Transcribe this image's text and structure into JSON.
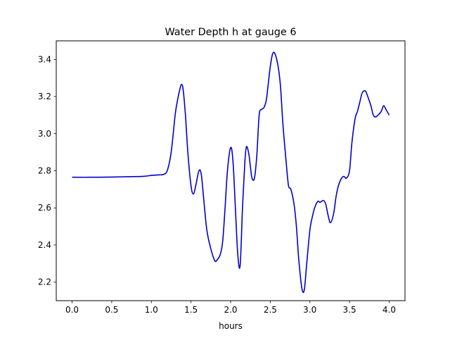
{
  "chart_data": {
    "type": "line",
    "title": "Water Depth h at gauge 6",
    "xlabel": "hours",
    "ylabel": "",
    "xlim": [
      -0.2,
      4.2
    ],
    "ylim": [
      2.1,
      3.5
    ],
    "xticks": [
      0.0,
      0.5,
      1.0,
      1.5,
      2.0,
      2.5,
      3.0,
      3.5,
      4.0
    ],
    "xtick_labels": [
      "0.0",
      "0.5",
      "1.0",
      "1.5",
      "2.0",
      "2.5",
      "3.0",
      "3.5",
      "4.0"
    ],
    "yticks": [
      2.2,
      2.4,
      2.6,
      2.8,
      3.0,
      3.2,
      3.4
    ],
    "ytick_labels": [
      "2.2",
      "2.4",
      "2.6",
      "2.8",
      "3.0",
      "3.2",
      "3.4"
    ],
    "grid": false,
    "legend": false,
    "series": [
      {
        "color": "#0000cc",
        "x": [
          0.0,
          0.25,
          0.5,
          0.7,
          0.9,
          1.0,
          1.1,
          1.15,
          1.2,
          1.25,
          1.3,
          1.33,
          1.36,
          1.38,
          1.4,
          1.43,
          1.46,
          1.5,
          1.53,
          1.56,
          1.6,
          1.63,
          1.66,
          1.7,
          1.75,
          1.8,
          1.83,
          1.87,
          1.9,
          1.93,
          1.96,
          2.0,
          2.03,
          2.06,
          2.09,
          2.12,
          2.15,
          2.18,
          2.2,
          2.23,
          2.25,
          2.27,
          2.3,
          2.33,
          2.36,
          2.39,
          2.42,
          2.45,
          2.47,
          2.5,
          2.53,
          2.56,
          2.6,
          2.63,
          2.66,
          2.7,
          2.73,
          2.76,
          2.8,
          2.83,
          2.86,
          2.9,
          2.93,
          2.96,
          3.0,
          3.03,
          3.06,
          3.1,
          3.13,
          3.17,
          3.2,
          3.23,
          3.26,
          3.3,
          3.33,
          3.36,
          3.4,
          3.43,
          3.46,
          3.5,
          3.53,
          3.57,
          3.6,
          3.63,
          3.66,
          3.7,
          3.73,
          3.77,
          3.8,
          3.83,
          3.86,
          3.9,
          3.93,
          3.96,
          4.0
        ],
        "y": [
          2.765,
          2.765,
          2.766,
          2.768,
          2.77,
          2.775,
          2.778,
          2.78,
          2.8,
          2.9,
          3.1,
          3.18,
          3.24,
          3.265,
          3.24,
          3.1,
          2.9,
          2.72,
          2.675,
          2.72,
          2.8,
          2.78,
          2.65,
          2.48,
          2.38,
          2.315,
          2.32,
          2.35,
          2.42,
          2.6,
          2.8,
          2.925,
          2.85,
          2.6,
          2.35,
          2.29,
          2.6,
          2.85,
          2.93,
          2.89,
          2.82,
          2.76,
          2.76,
          2.88,
          3.1,
          3.13,
          3.14,
          3.18,
          3.25,
          3.36,
          3.43,
          3.43,
          3.36,
          3.25,
          3.05,
          2.85,
          2.72,
          2.7,
          2.62,
          2.5,
          2.32,
          2.165,
          2.16,
          2.3,
          2.48,
          2.55,
          2.6,
          2.635,
          2.63,
          2.64,
          2.62,
          2.56,
          2.52,
          2.57,
          2.66,
          2.72,
          2.76,
          2.77,
          2.76,
          2.8,
          2.95,
          3.08,
          3.12,
          3.17,
          3.22,
          3.23,
          3.2,
          3.15,
          3.1,
          3.09,
          3.1,
          3.12,
          3.15,
          3.13,
          3.1
        ]
      }
    ]
  }
}
